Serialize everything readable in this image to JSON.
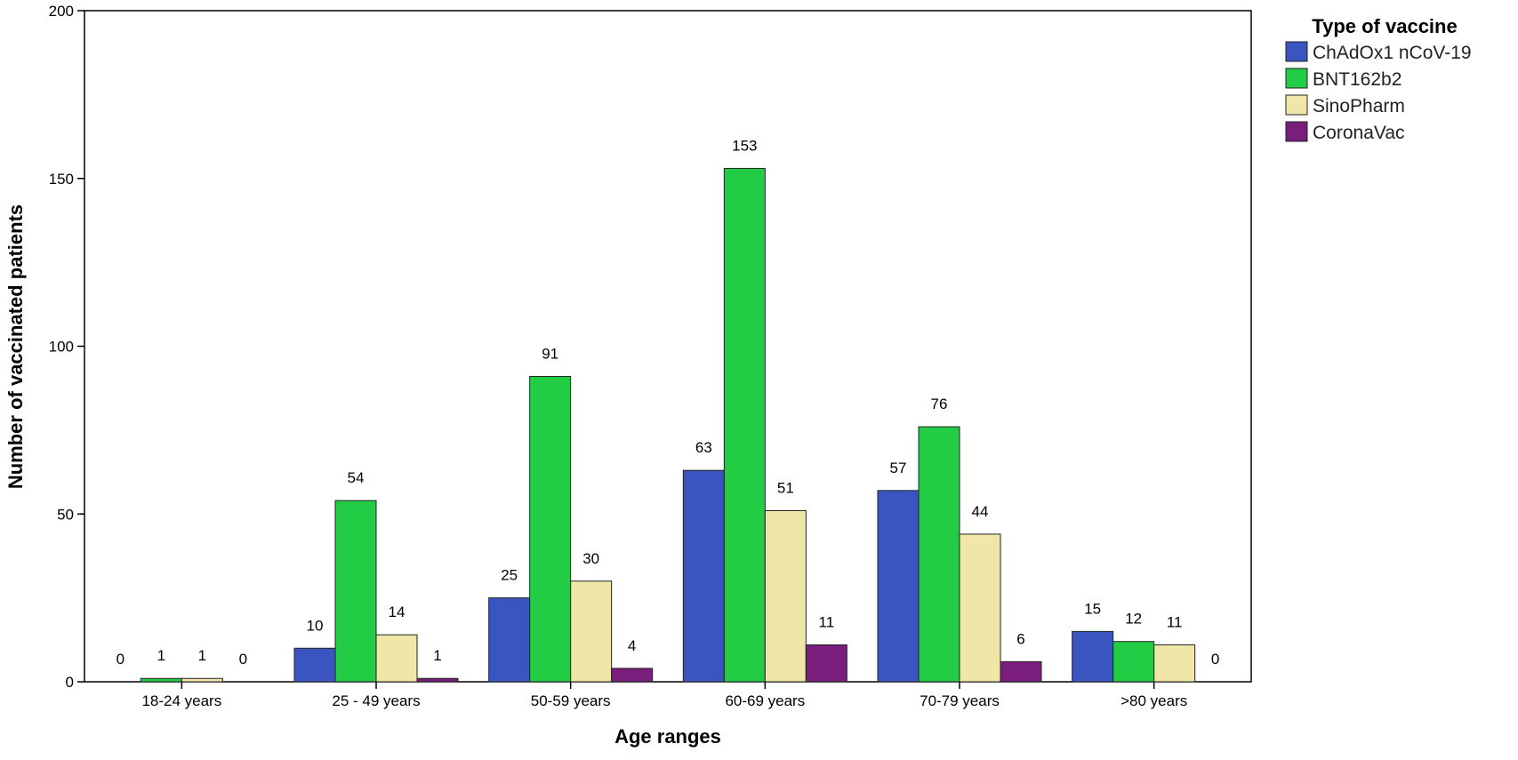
{
  "chart_data": {
    "type": "bar",
    "xlabel": "Age ranges",
    "ylabel": "Number of vaccinated patients",
    "ylim": [
      0,
      200
    ],
    "yticks": [
      0,
      50,
      100,
      150,
      200
    ],
    "grid": false,
    "legend_position": "top-right",
    "legend_title": "Type of vaccine",
    "categories": [
      "18-24 years",
      "25 - 49 years",
      "50-59 years",
      "60-69 years",
      "70-79 years",
      ">80 years"
    ],
    "series": [
      {
        "name": "ChAdOx1 nCoV-19",
        "color": "#3a55c0",
        "values": [
          0,
          10,
          25,
          63,
          57,
          15
        ]
      },
      {
        "name": "BNT162b2",
        "color": "#22cc44",
        "values": [
          1,
          54,
          91,
          153,
          76,
          12
        ]
      },
      {
        "name": "SinoPharm",
        "color": "#f0e6a8",
        "values": [
          1,
          14,
          30,
          51,
          44,
          11
        ]
      },
      {
        "name": "CoronaVac",
        "color": "#7a1e7e",
        "values": [
          0,
          1,
          4,
          11,
          6,
          0
        ]
      }
    ]
  }
}
